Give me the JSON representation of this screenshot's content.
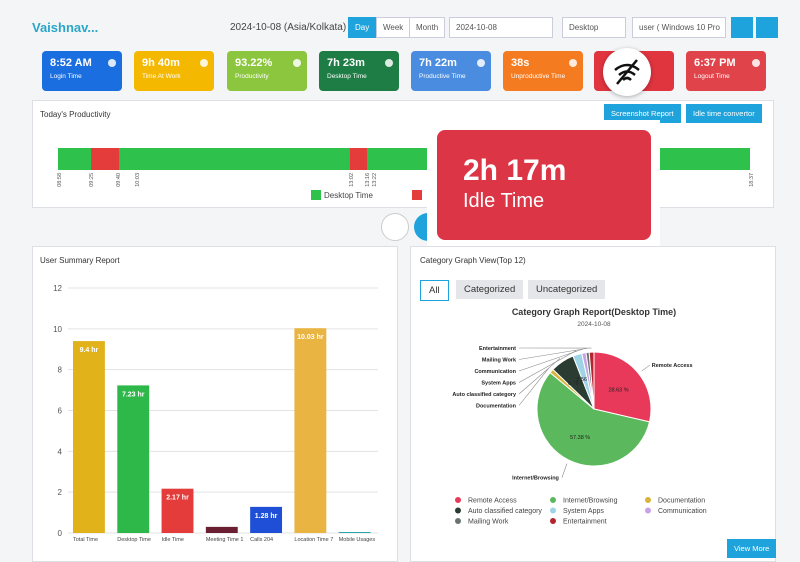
{
  "header": {
    "user": "Vaishnav...",
    "date_tz": "2024-10-08 (Asia/Kolkata)",
    "tabs": [
      "Day",
      "Week",
      "Month"
    ],
    "date_input": "2024-10-08",
    "device": "Desktop",
    "user_select": "user ( Windows 10 Pro"
  },
  "cards": [
    {
      "value": "8:52 AM",
      "label": "Login Time",
      "color": "#1a6ee0"
    },
    {
      "value": "9h 40m",
      "label": "Time At Work",
      "color": "#f5b800"
    },
    {
      "value": "93.22%",
      "label": "Productivity",
      "color": "#8cc63f"
    },
    {
      "value": "7h 23m",
      "label": "Desktop Time",
      "color": "#1e7d45"
    },
    {
      "value": "7h 22m",
      "label": "Productive Time",
      "color": "#4a8de0"
    },
    {
      "value": "38s",
      "label": "Unproductive Time",
      "color": "#f47b20"
    },
    {
      "value": "6:37 PM",
      "label": "Logout Time",
      "color": "#e04349"
    }
  ],
  "productivity": {
    "title": "Today's Productivity",
    "buttons": [
      "Screenshot Report",
      "Idle time convertor"
    ],
    "times": [
      "08:58",
      "09:25",
      "09:40",
      "10:03",
      "13:02",
      "13:16",
      "13:22",
      "18:37"
    ],
    "legend": [
      "Desktop Time"
    ]
  },
  "idle_popup": {
    "value": "2h 17m",
    "label": "Idle Time"
  },
  "user_summary": {
    "title": "User Summary Report"
  },
  "category": {
    "title": "Category Graph View(Top 12)",
    "tabs": [
      "All",
      "Categorized",
      "Uncategorized"
    ],
    "button": "View More"
  },
  "chart_data": [
    {
      "type": "bar",
      "categories": [
        "Total Time",
        "Desktop Time",
        "Idle Time",
        "Meeting Time 1",
        "Calls 204",
        "Location Time 7",
        "Mobile Usages"
      ],
      "values": [
        9.4,
        7.23,
        2.17,
        0.3,
        1.28,
        10.03,
        0.05
      ],
      "value_labels": [
        "9.4 hr",
        "7.23 hr",
        "2.17 hr",
        null,
        "1.28 hr",
        "10.03 hr",
        null
      ],
      "colors": [
        "#e2b21a",
        "#2eb84a",
        "#e43b3b",
        "#6b1f33",
        "#1f4fd6",
        "#e9b441",
        "#2aa6a6"
      ],
      "ylim": [
        0,
        12
      ],
      "yticks": [
        0,
        2,
        4,
        6,
        8,
        10,
        12
      ],
      "grid": true
    },
    {
      "type": "pie",
      "title": "Category Graph Report(Desktop Time)",
      "subtitle": "2024-10-08",
      "categories": [
        "Remote Access",
        "Internet/Browsing",
        "Documentation",
        "Auto classified category",
        "System Apps",
        "Communication",
        "Mailing Work",
        "Entertainment"
      ],
      "values": [
        28.63,
        57.38,
        1.2,
        6.78,
        2.56,
        1.2,
        0.9,
        1.35
      ],
      "value_labels": [
        "28.63 %",
        "57.38 %",
        null,
        "6.78 %",
        "2.56 %",
        null,
        null,
        null
      ],
      "colors": [
        "#e8395a",
        "#5cb85c",
        "#d9b43a",
        "#2b3d33",
        "#9fd3e6",
        "#c7a3e6",
        "#6b7370",
        "#b3242f"
      ]
    }
  ]
}
